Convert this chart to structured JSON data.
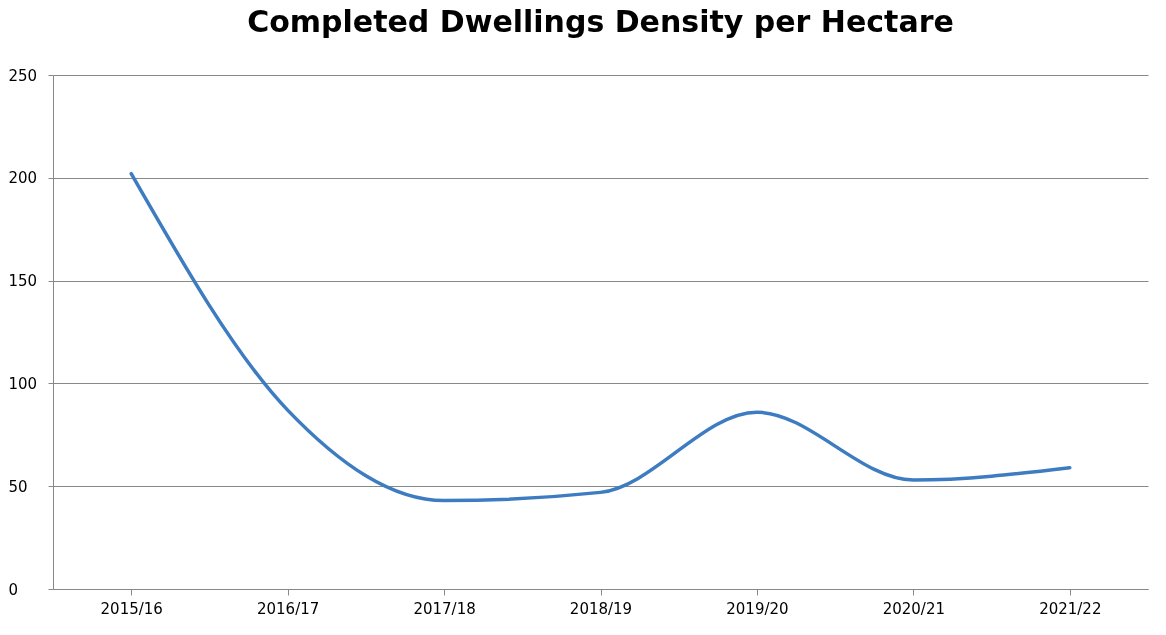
{
  "chart_data": {
    "type": "line",
    "title": "Completed Dwellings Density per Hectare",
    "categories": [
      "2015/16",
      "2016/17",
      "2017/18",
      "2018/19",
      "2019/20",
      "2020/21",
      "2021/22"
    ],
    "series": [
      {
        "color": "#3d7cc0",
        "values": [
          202,
          87,
          43,
          47,
          86,
          53,
          59
        ]
      }
    ],
    "ylim": [
      0,
      250
    ],
    "yticks": [
      0,
      50,
      100,
      150,
      200,
      250
    ],
    "grid": "y",
    "legend": false,
    "marker": "none",
    "line_style": "solid"
  }
}
